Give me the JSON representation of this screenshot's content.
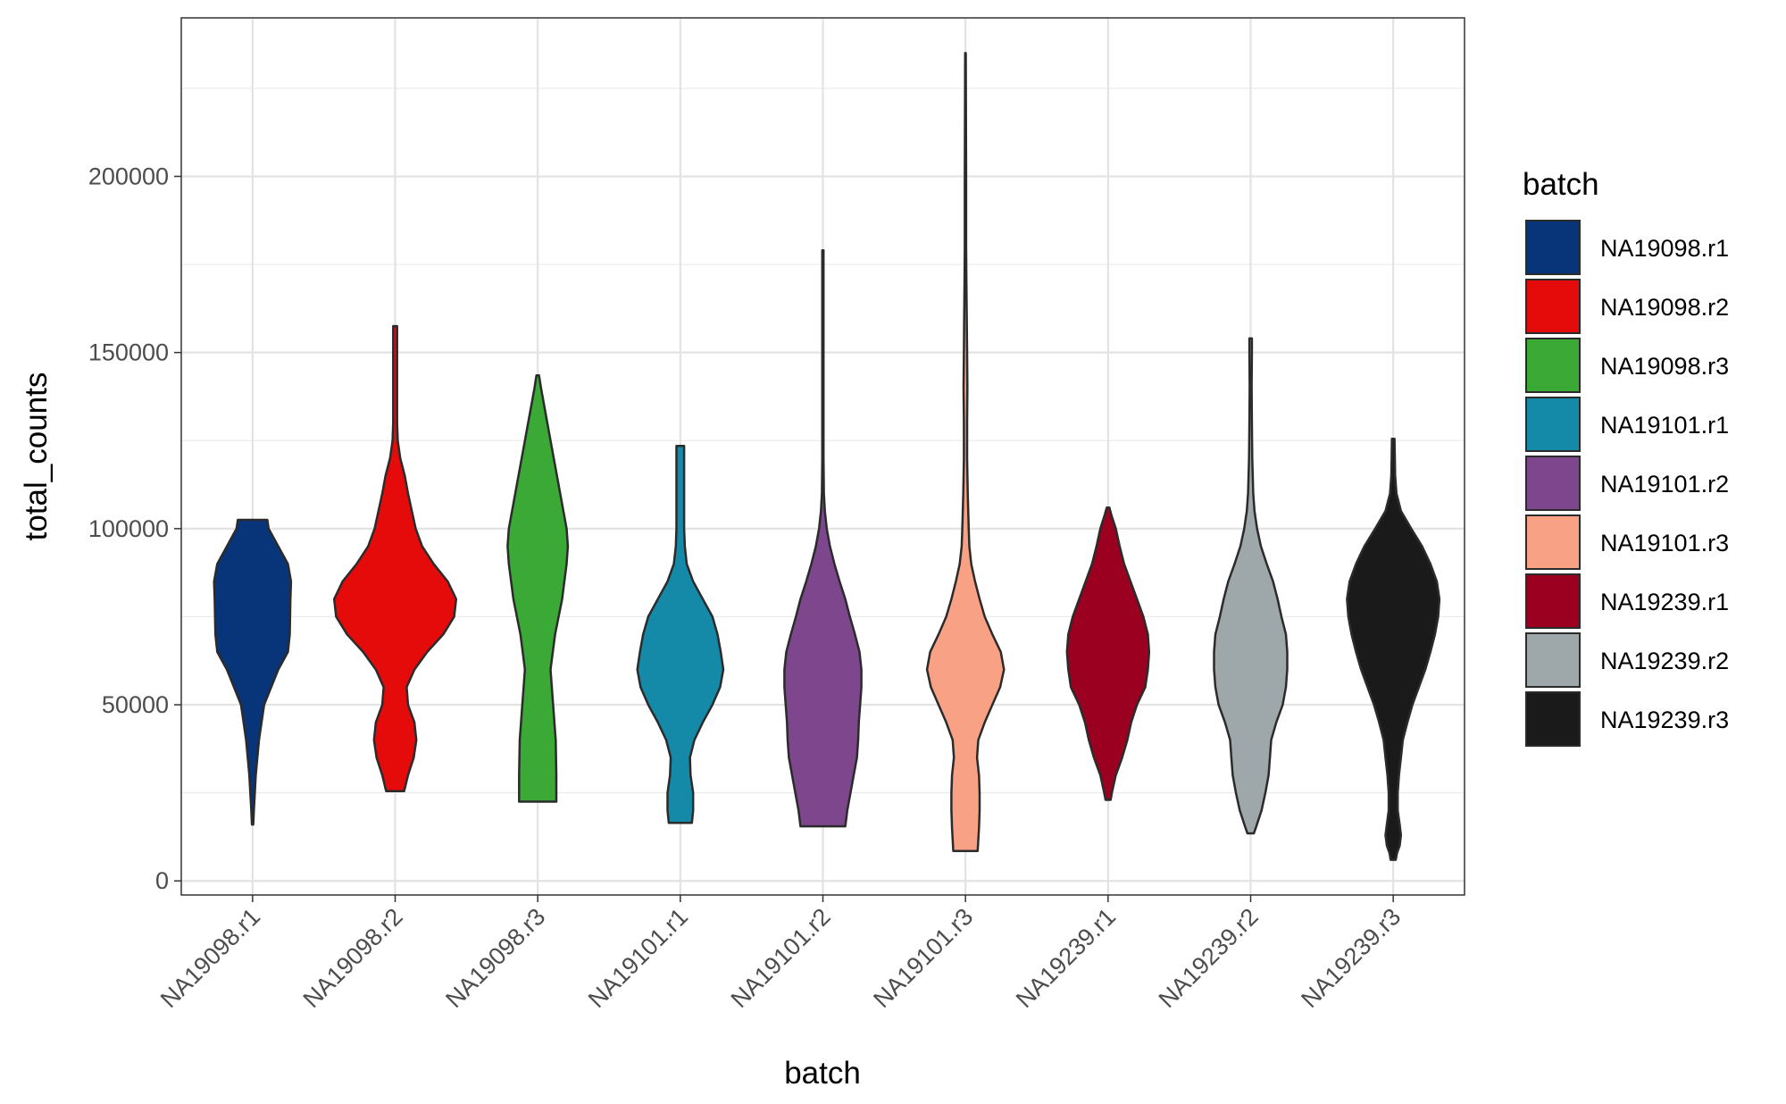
{
  "chart_data": {
    "type": "violin",
    "title": "",
    "xlabel": "batch",
    "ylabel": "total_counts",
    "ylim": [
      -4000,
      245000
    ],
    "y_ticks": [
      0,
      50000,
      100000,
      150000,
      200000
    ],
    "y_tick_labels": [
      "0",
      "50000",
      "100000",
      "150000",
      "200000"
    ],
    "grid": true,
    "legend": {
      "title": "batch",
      "position": "right"
    },
    "categories": [
      "NA19098.r1",
      "NA19098.r2",
      "NA19098.r3",
      "NA19101.r1",
      "NA19101.r2",
      "NA19101.r3",
      "NA19239.r1",
      "NA19239.r2",
      "NA19239.r3"
    ],
    "series": [
      {
        "name": "NA19098.r1",
        "color": "#08357a",
        "min": 16000,
        "max": 102500,
        "profile": [
          [
            16000,
            0.01
          ],
          [
            20000,
            0.02
          ],
          [
            30000,
            0.05
          ],
          [
            40000,
            0.1
          ],
          [
            50000,
            0.18
          ],
          [
            60000,
            0.4
          ],
          [
            65000,
            0.55
          ],
          [
            70000,
            0.58
          ],
          [
            80000,
            0.59
          ],
          [
            85000,
            0.6
          ],
          [
            90000,
            0.55
          ],
          [
            95000,
            0.4
          ],
          [
            100000,
            0.25
          ],
          [
            102500,
            0.23
          ]
        ]
      },
      {
        "name": "NA19098.r2",
        "color": "#e60b0b",
        "min": 25500,
        "max": 157500,
        "profile": [
          [
            25500,
            0.14
          ],
          [
            30000,
            0.2
          ],
          [
            35000,
            0.29
          ],
          [
            40000,
            0.33
          ],
          [
            45000,
            0.3
          ],
          [
            50000,
            0.2
          ],
          [
            55000,
            0.18
          ],
          [
            60000,
            0.3
          ],
          [
            65000,
            0.5
          ],
          [
            70000,
            0.75
          ],
          [
            75000,
            0.92
          ],
          [
            80000,
            0.95
          ],
          [
            85000,
            0.82
          ],
          [
            90000,
            0.6
          ],
          [
            95000,
            0.42
          ],
          [
            100000,
            0.32
          ],
          [
            105000,
            0.26
          ],
          [
            110000,
            0.2
          ],
          [
            115000,
            0.15
          ],
          [
            120000,
            0.08
          ],
          [
            125000,
            0.04
          ],
          [
            130000,
            0.03
          ],
          [
            140000,
            0.03
          ],
          [
            150000,
            0.03
          ],
          [
            157500,
            0.03
          ]
        ]
      },
      {
        "name": "NA19098.r3",
        "color": "#3aa935",
        "min": 22500,
        "max": 143500,
        "profile": [
          [
            22500,
            0.29
          ],
          [
            30000,
            0.29
          ],
          [
            40000,
            0.28
          ],
          [
            50000,
            0.24
          ],
          [
            60000,
            0.2
          ],
          [
            70000,
            0.27
          ],
          [
            80000,
            0.38
          ],
          [
            90000,
            0.45
          ],
          [
            95000,
            0.47
          ],
          [
            100000,
            0.45
          ],
          [
            110000,
            0.35
          ],
          [
            120000,
            0.25
          ],
          [
            130000,
            0.15
          ],
          [
            140000,
            0.05
          ],
          [
            143500,
            0.02
          ]
        ]
      },
      {
        "name": "NA19101.r1",
        "color": "#1589a8",
        "min": 16500,
        "max": 123500,
        "profile": [
          [
            16500,
            0.18
          ],
          [
            20000,
            0.2
          ],
          [
            25000,
            0.2
          ],
          [
            30000,
            0.16
          ],
          [
            35000,
            0.15
          ],
          [
            40000,
            0.22
          ],
          [
            45000,
            0.35
          ],
          [
            50000,
            0.5
          ],
          [
            55000,
            0.62
          ],
          [
            60000,
            0.67
          ],
          [
            65000,
            0.63
          ],
          [
            70000,
            0.58
          ],
          [
            75000,
            0.5
          ],
          [
            80000,
            0.35
          ],
          [
            85000,
            0.2
          ],
          [
            90000,
            0.1
          ],
          [
            95000,
            0.07
          ],
          [
            100000,
            0.06
          ],
          [
            110000,
            0.06
          ],
          [
            120000,
            0.06
          ],
          [
            123500,
            0.06
          ]
        ]
      },
      {
        "name": "NA19101.r2",
        "color": "#7e468c",
        "min": 15500,
        "max": 179000,
        "profile": [
          [
            15500,
            0.35
          ],
          [
            20000,
            0.38
          ],
          [
            25000,
            0.43
          ],
          [
            30000,
            0.48
          ],
          [
            35000,
            0.53
          ],
          [
            40000,
            0.55
          ],
          [
            45000,
            0.56
          ],
          [
            50000,
            0.58
          ],
          [
            55000,
            0.6
          ],
          [
            60000,
            0.6
          ],
          [
            65000,
            0.57
          ],
          [
            70000,
            0.5
          ],
          [
            75000,
            0.42
          ],
          [
            80000,
            0.35
          ],
          [
            85000,
            0.26
          ],
          [
            90000,
            0.18
          ],
          [
            95000,
            0.11
          ],
          [
            100000,
            0.06
          ],
          [
            105000,
            0.03
          ],
          [
            110000,
            0.015
          ],
          [
            120000,
            0.01
          ],
          [
            140000,
            0.01
          ],
          [
            160000,
            0.01
          ],
          [
            179000,
            0.01
          ]
        ]
      },
      {
        "name": "NA19101.r3",
        "color": "#f9a184",
        "min": 8500,
        "max": 235000,
        "profile": [
          [
            8500,
            0.19
          ],
          [
            15000,
            0.21
          ],
          [
            20000,
            0.22
          ],
          [
            25000,
            0.22
          ],
          [
            30000,
            0.21
          ],
          [
            35000,
            0.18
          ],
          [
            40000,
            0.2
          ],
          [
            45000,
            0.3
          ],
          [
            50000,
            0.42
          ],
          [
            55000,
            0.54
          ],
          [
            60000,
            0.6
          ],
          [
            65000,
            0.55
          ],
          [
            70000,
            0.42
          ],
          [
            75000,
            0.3
          ],
          [
            80000,
            0.22
          ],
          [
            85000,
            0.15
          ],
          [
            90000,
            0.09
          ],
          [
            95000,
            0.06
          ],
          [
            100000,
            0.05
          ],
          [
            110000,
            0.035
          ],
          [
            120000,
            0.025
          ],
          [
            130000,
            0.025
          ],
          [
            140000,
            0.03
          ],
          [
            150000,
            0.025
          ],
          [
            160000,
            0.02
          ],
          [
            170000,
            0.015
          ],
          [
            180000,
            0.01
          ],
          [
            200000,
            0.01
          ],
          [
            235000,
            0.005
          ]
        ]
      },
      {
        "name": "NA19239.r1",
        "color": "#9b0020",
        "min": 23000,
        "max": 106000,
        "profile": [
          [
            23000,
            0.04
          ],
          [
            25000,
            0.06
          ],
          [
            30000,
            0.12
          ],
          [
            35000,
            0.22
          ],
          [
            40000,
            0.3
          ],
          [
            45000,
            0.36
          ],
          [
            50000,
            0.45
          ],
          [
            55000,
            0.58
          ],
          [
            60000,
            0.62
          ],
          [
            65000,
            0.64
          ],
          [
            70000,
            0.62
          ],
          [
            75000,
            0.55
          ],
          [
            80000,
            0.45
          ],
          [
            85000,
            0.35
          ],
          [
            90000,
            0.25
          ],
          [
            95000,
            0.18
          ],
          [
            100000,
            0.12
          ],
          [
            104000,
            0.05
          ],
          [
            106000,
            0.02
          ]
        ]
      },
      {
        "name": "NA19239.r2",
        "color": "#9ea7a9",
        "min": 13500,
        "max": 154000,
        "profile": [
          [
            13500,
            0.05
          ],
          [
            15000,
            0.08
          ],
          [
            20000,
            0.17
          ],
          [
            25000,
            0.23
          ],
          [
            30000,
            0.28
          ],
          [
            35000,
            0.3
          ],
          [
            40000,
            0.32
          ],
          [
            45000,
            0.4
          ],
          [
            50000,
            0.5
          ],
          [
            55000,
            0.55
          ],
          [
            60000,
            0.57
          ],
          [
            65000,
            0.57
          ],
          [
            70000,
            0.55
          ],
          [
            75000,
            0.48
          ],
          [
            80000,
            0.42
          ],
          [
            85000,
            0.35
          ],
          [
            90000,
            0.25
          ],
          [
            95000,
            0.16
          ],
          [
            100000,
            0.1
          ],
          [
            105000,
            0.06
          ],
          [
            110000,
            0.04
          ],
          [
            120000,
            0.025
          ],
          [
            130000,
            0.02
          ],
          [
            140000,
            0.015
          ],
          [
            150000,
            0.02
          ],
          [
            154000,
            0.02
          ]
        ]
      },
      {
        "name": "NA19239.r3",
        "color": "#1a1a1a",
        "min": 6000,
        "max": 125500,
        "profile": [
          [
            6000,
            0.04
          ],
          [
            8000,
            0.06
          ],
          [
            10000,
            0.1
          ],
          [
            13000,
            0.12
          ],
          [
            16000,
            0.1
          ],
          [
            20000,
            0.07
          ],
          [
            25000,
            0.07
          ],
          [
            30000,
            0.09
          ],
          [
            35000,
            0.12
          ],
          [
            40000,
            0.15
          ],
          [
            45000,
            0.22
          ],
          [
            50000,
            0.3
          ],
          [
            55000,
            0.4
          ],
          [
            60000,
            0.5
          ],
          [
            65000,
            0.58
          ],
          [
            70000,
            0.65
          ],
          [
            75000,
            0.7
          ],
          [
            80000,
            0.72
          ],
          [
            85000,
            0.68
          ],
          [
            90000,
            0.58
          ],
          [
            95000,
            0.45
          ],
          [
            100000,
            0.28
          ],
          [
            105000,
            0.12
          ],
          [
            110000,
            0.05
          ],
          [
            115000,
            0.03
          ],
          [
            120000,
            0.025
          ],
          [
            125500,
            0.02
          ]
        ]
      }
    ]
  }
}
